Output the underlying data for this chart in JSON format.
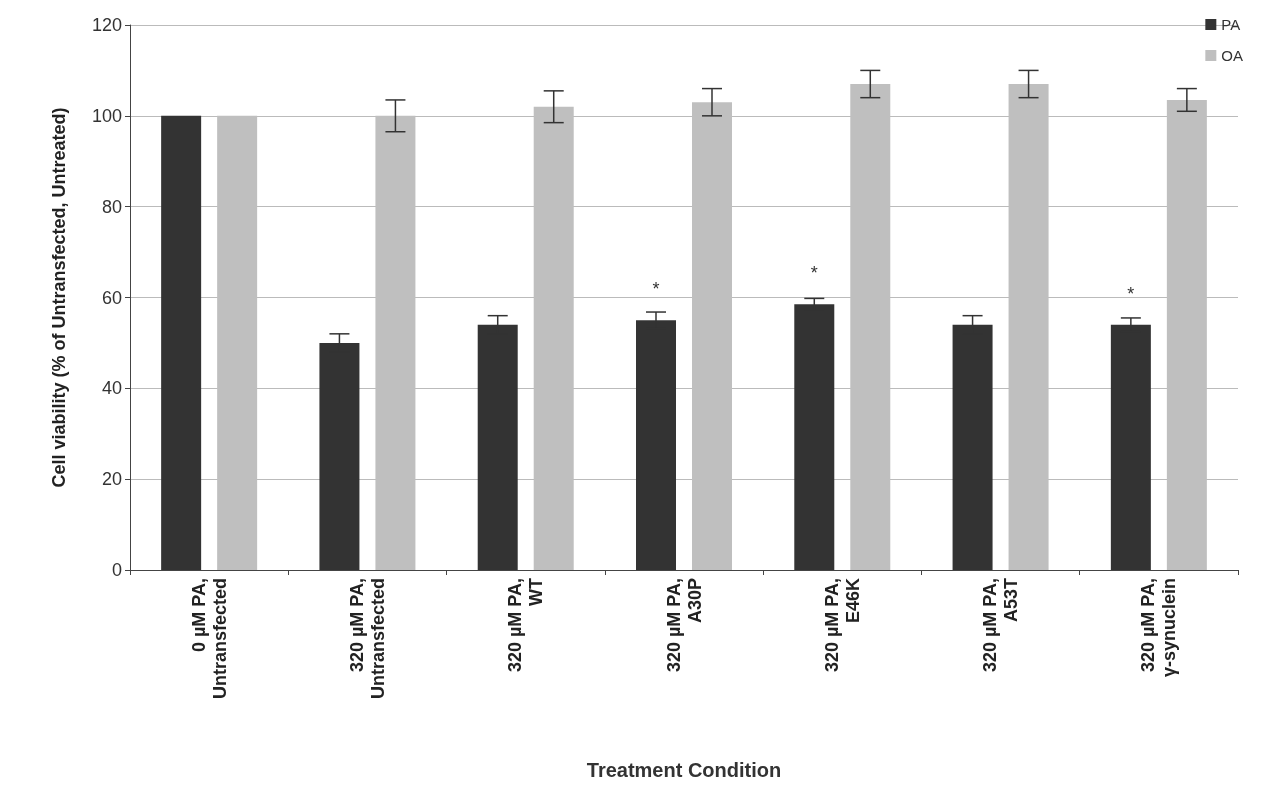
{
  "chart_data": {
    "type": "bar",
    "xlabel": "Treatment Condition",
    "ylabel": "Cell viability (% of Untransfected, Untreated)",
    "categories": [
      "0 µM PA, Untransfected",
      "320 µM PA, Untransfected",
      "320 µM PA, WT",
      "320 µM PA, A30P",
      "320 µM PA, E46K",
      "320 µM PA, A53T",
      "320 µM PA, γ-synuclein"
    ],
    "series": [
      {
        "name": "PA",
        "color": "#333333",
        "values": [
          100,
          50,
          54,
          55,
          58.5,
          54,
          54
        ],
        "errors": [
          null,
          2,
          2,
          1.8,
          1.3,
          2,
          1.5
        ],
        "value_labels": [
          null,
          null,
          null,
          "*",
          "*",
          null,
          "*"
        ]
      },
      {
        "name": "OA",
        "color": "#bfbfbf",
        "values": [
          100,
          100,
          102,
          103,
          107,
          107,
          103.5
        ],
        "errors": [
          null,
          3.5,
          3.5,
          3,
          3,
          3,
          2.5
        ]
      }
    ],
    "ylim": [
      0,
      120
    ],
    "yticks": [
      0,
      20,
      40,
      60,
      80,
      100,
      120
    ],
    "grid": "y",
    "legend": "top right"
  }
}
